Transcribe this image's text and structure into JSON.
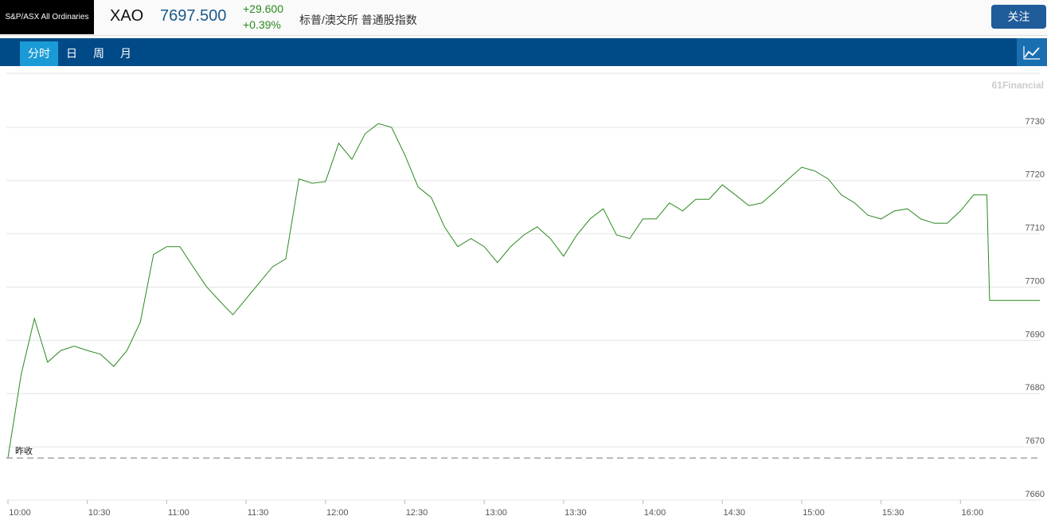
{
  "header": {
    "badge": "S&P/ASX All Ordinaries",
    "symbol": "XAO",
    "price": "7697.500",
    "change": "+29.600",
    "change_pct": "+0.39%",
    "name": "标普/澳交所 普通股指数",
    "follow": "关注"
  },
  "tabs": [
    "分时",
    "日",
    "周",
    "月"
  ],
  "chart_data": {
    "type": "line",
    "watermark": "61Financial",
    "x": [
      "10:00",
      "10:05",
      "10:10",
      "10:15",
      "10:20",
      "10:25",
      "10:30",
      "10:35",
      "10:40",
      "10:45",
      "10:50",
      "10:55",
      "11:00",
      "11:05",
      "11:10",
      "11:15",
      "11:20",
      "11:25",
      "11:30",
      "11:35",
      "11:40",
      "11:45",
      "11:50",
      "11:55",
      "12:00",
      "12:05",
      "12:10",
      "12:15",
      "12:20",
      "12:25",
      "12:30",
      "12:35",
      "12:40",
      "12:45",
      "12:50",
      "12:55",
      "13:00",
      "13:05",
      "13:10",
      "13:15",
      "13:20",
      "13:25",
      "13:30",
      "13:35",
      "13:40",
      "13:45",
      "13:50",
      "13:55",
      "14:00",
      "14:05",
      "14:10",
      "14:15",
      "14:20",
      "14:25",
      "14:30",
      "14:35",
      "14:40",
      "14:45",
      "14:50",
      "14:55",
      "15:00",
      "15:05",
      "15:10",
      "15:15",
      "15:20",
      "15:25",
      "15:30",
      "15:35",
      "15:40",
      "15:45",
      "15:50",
      "15:55",
      "16:00",
      "16:05",
      "16:10",
      "16:11",
      "16:15",
      "16:20",
      "16:25",
      "16:30"
    ],
    "series": [
      {
        "color": "#2a8a1f",
        "values": [
          7668,
          7683.6,
          7694.1,
          7685.9,
          7688.1,
          7688.9,
          7688.1,
          7687.4,
          7685.1,
          7688.1,
          7693.4,
          7706.1,
          7707.6,
          7707.6,
          7703.8,
          7700.1,
          7697.4,
          7694.8,
          7697.8,
          7700.8,
          7703.8,
          7705.3,
          7720.3,
          7719.5,
          7719.8,
          7727,
          7724,
          7728.8,
          7730.7,
          7730,
          7724.8,
          7718.8,
          7716.8,
          7711.3,
          7707.6,
          7709.1,
          7707.6,
          7704.6,
          7707.6,
          7709.8,
          7711.3,
          7709.1,
          7705.8,
          7709.8,
          7712.8,
          7714.7,
          7709.8,
          7709.1,
          7712.8,
          7712.8,
          7715.8,
          7714.3,
          7716.5,
          7716.5,
          7719.2,
          7717.3,
          7715.3,
          7715.8,
          7718,
          7720.3,
          7722.5,
          7721.8,
          7720.3,
          7717.3,
          7715.8,
          7713.5,
          7712.8,
          7714.3,
          7714.7,
          7712.8,
          7712,
          7712,
          7714.3,
          7717.3,
          7717.3,
          7697.5,
          7697.5,
          7697.5,
          7697.5,
          7697.5
        ]
      }
    ],
    "xlim": [
      "10:00",
      "16:30"
    ],
    "xticks": [
      "10:00",
      "10:30",
      "11:00",
      "11:30",
      "12:00",
      "12:30",
      "13:00",
      "13:30",
      "14:00",
      "14:30",
      "15:00",
      "15:30",
      "16:00"
    ],
    "ylim": [
      7660,
      7740
    ],
    "yticks": [
      7660,
      7670,
      7680,
      7690,
      7700,
      7710,
      7720,
      7730
    ],
    "grid": true,
    "reference": {
      "label": "昨收",
      "value": 7667.9
    }
  }
}
